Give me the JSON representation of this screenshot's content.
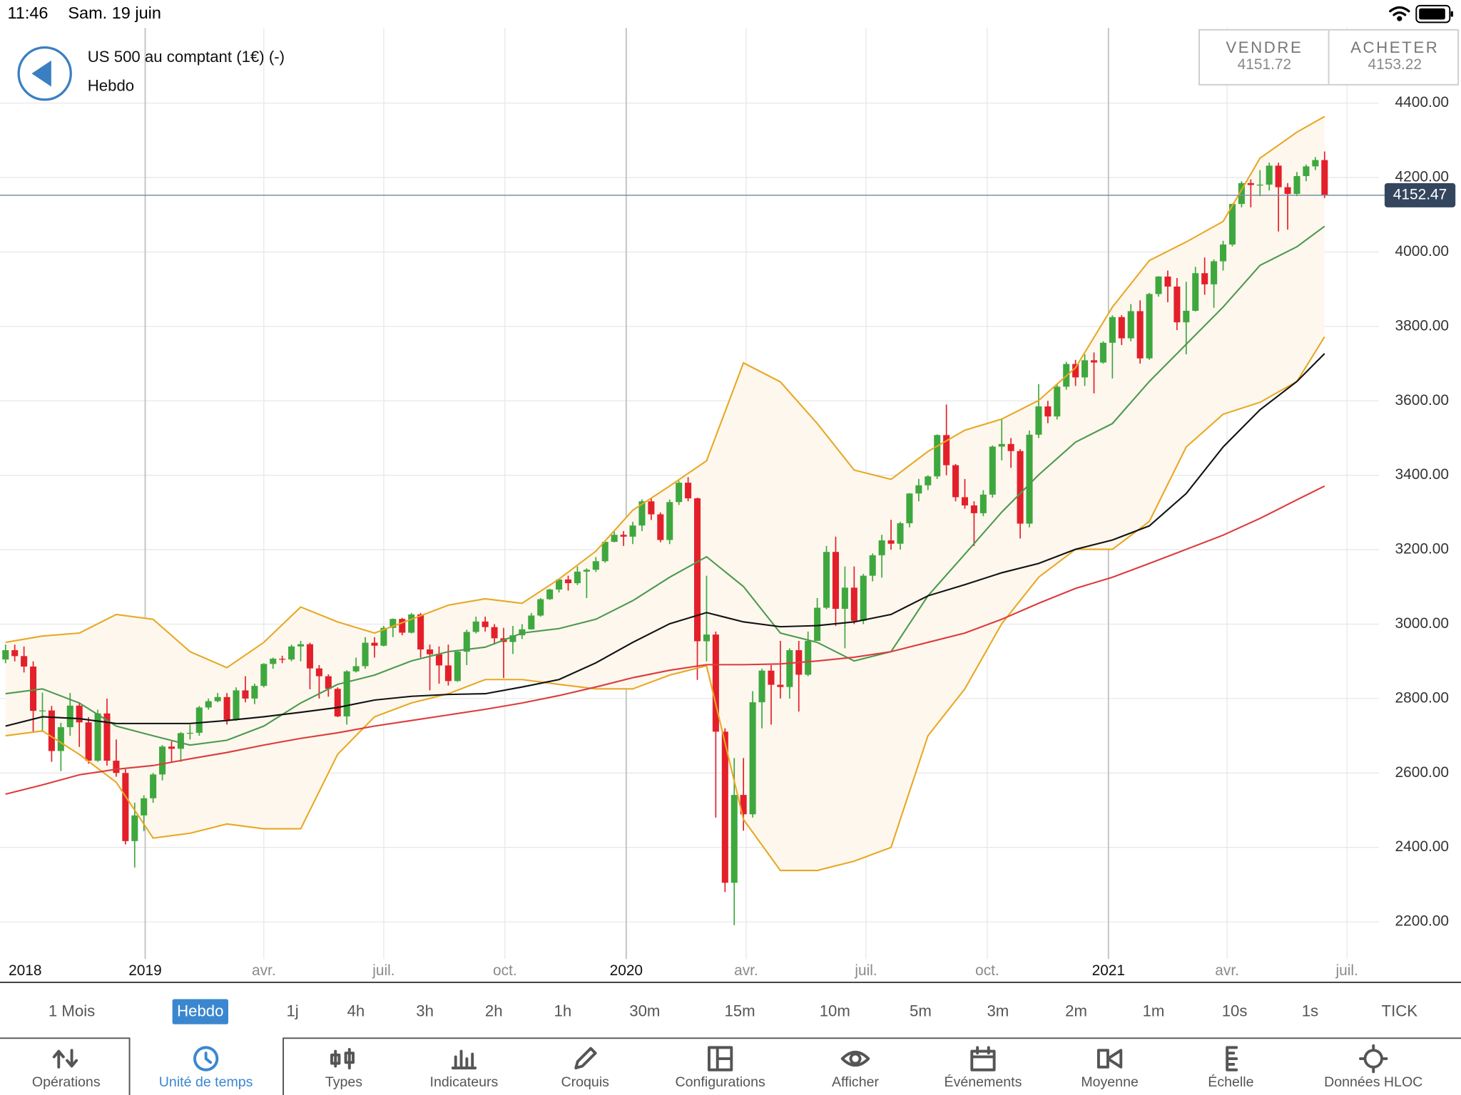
{
  "status_bar": {
    "time": "11:46",
    "date": "Sam. 19 juin"
  },
  "quote": {
    "sell_label": "VENDRE",
    "sell": 4151.72,
    "buy_label": "ACHETER",
    "buy": 4153.22
  },
  "chart_data": {
    "type": "candlestick",
    "title": "US 500 au comptant (1€) (-)",
    "subtitle": "Hebdo",
    "up_color": "#3ea83e",
    "down_color": "#e3202a",
    "open": [
      2905,
      2930,
      2914,
      2886,
      2767,
      2768,
      2659,
      2723,
      2781,
      2736,
      2633,
      2760,
      2633,
      2600,
      2417,
      2486,
      2532,
      2596,
      2671,
      2665,
      2707,
      2708,
      2776,
      2793,
      2804,
      2743,
      2822,
      2800,
      2834,
      2893,
      2907,
      2905,
      2940,
      2946,
      2881,
      2860,
      2826,
      2752,
      2873,
      2887,
      2950,
      2942,
      2990,
      3014,
      2977,
      3026,
      2932,
      2919,
      2889,
      2847,
      2926,
      2979,
      3007,
      2992,
      2962,
      2952,
      2970,
      2986,
      3023,
      3067,
      3093,
      3120,
      3110,
      3141,
      3146,
      3169,
      3221,
      3240,
      3235,
      3265,
      3330,
      3295,
      3226,
      3328,
      3380,
      3338,
      2954,
      2972,
      2711,
      2305,
      2541,
      2489,
      2790,
      2875,
      2837,
      2831,
      2930,
      2864,
      2955,
      3044,
      3194,
      3041,
      3098,
      3009,
      3130,
      3185,
      3225,
      3216,
      3271,
      3351,
      3373,
      3397,
      3508,
      3427,
      3341,
      3319,
      3298,
      3348,
      3477,
      3484,
      3465,
      3270,
      3509,
      3585,
      3558,
      3638,
      3699,
      3663,
      3709,
      3703,
      3756,
      3825,
      3768,
      3841,
      3714,
      3887,
      3934,
      3907,
      3811,
      3842,
      3943,
      3913,
      3975,
      4020,
      4129,
      4185,
      4180,
      4181,
      4232,
      4174,
      4156,
      4204,
      4230,
      4247
    ],
    "high": [
      2945,
      2945,
      2940,
      2900,
      2816,
      2780,
      2735,
      2815,
      2790,
      2750,
      2770,
      2800,
      2690,
      2610,
      2520,
      2540,
      2600,
      2675,
      2685,
      2710,
      2730,
      2780,
      2800,
      2815,
      2815,
      2830,
      2860,
      2840,
      2895,
      2910,
      2915,
      2945,
      2955,
      2950,
      2890,
      2865,
      2830,
      2876,
      2910,
      2965,
      2965,
      2995,
      3015,
      3017,
      3030,
      3030,
      2945,
      2940,
      2945,
      2930,
      2985,
      3020,
      3020,
      3000,
      2990,
      2995,
      3000,
      3030,
      3070,
      3095,
      3122,
      3130,
      3155,
      3150,
      3180,
      3225,
      3248,
      3250,
      3275,
      3335,
      3340,
      3300,
      3335,
      3385,
      3395,
      3340,
      3130,
      2980,
      2720,
      2640,
      2640,
      2820,
      2880,
      2890,
      2955,
      2935,
      2955,
      2980,
      3070,
      3210,
      3235,
      3155,
      3155,
      3135,
      3190,
      3240,
      3280,
      3275,
      3352,
      3390,
      3400,
      3510,
      3590,
      3430,
      3390,
      3330,
      3360,
      3480,
      3550,
      3500,
      3470,
      3520,
      3645,
      3600,
      3645,
      3705,
      3710,
      3725,
      3730,
      3760,
      3830,
      3830,
      3860,
      3870,
      3890,
      3935,
      3950,
      3930,
      3920,
      3960,
      3985,
      3980,
      4030,
      4130,
      4190,
      4195,
      4220,
      4240,
      4240,
      4185,
      4215,
      4235,
      4255,
      4270
    ],
    "low": [
      2895,
      2900,
      2870,
      2710,
      2710,
      2630,
      2605,
      2700,
      2670,
      2625,
      2630,
      2620,
      2590,
      2408,
      2346,
      2444,
      2520,
      2580,
      2630,
      2630,
      2690,
      2700,
      2770,
      2790,
      2730,
      2740,
      2790,
      2785,
      2830,
      2880,
      2895,
      2900,
      2900,
      2825,
      2800,
      2805,
      2750,
      2730,
      2870,
      2880,
      2910,
      2940,
      2965,
      2970,
      2975,
      2910,
      2822,
      2840,
      2835,
      2845,
      2890,
      2975,
      2980,
      2945,
      2855,
      2920,
      2960,
      2985,
      3020,
      3065,
      3085,
      3090,
      3105,
      3070,
      3140,
      3165,
      3220,
      3210,
      3215,
      3250,
      3280,
      3220,
      3215,
      3320,
      3330,
      2850,
      2900,
      2480,
      2280,
      2191,
      2445,
      2480,
      2720,
      2730,
      2800,
      2800,
      2765,
      2860,
      2960,
      3040,
      2995,
      2935,
      3000,
      3000,
      3115,
      3125,
      3200,
      3200,
      3260,
      3330,
      3360,
      3390,
      3400,
      3330,
      3310,
      3210,
      3290,
      3340,
      3440,
      3420,
      3230,
      3260,
      3500,
      3540,
      3550,
      3630,
      3640,
      3640,
      3620,
      3700,
      3660,
      3750,
      3760,
      3700,
      3710,
      3880,
      3865,
      3790,
      3725,
      3840,
      3885,
      3850,
      3950,
      4015,
      4120,
      4120,
      4150,
      4165,
      4055,
      4060,
      4150,
      4190,
      4220,
      4145
    ],
    "close": [
      2930,
      2914,
      2886,
      2767,
      2768,
      2659,
      2723,
      2781,
      2736,
      2633,
      2760,
      2633,
      2600,
      2417,
      2486,
      2532,
      2596,
      2671,
      2665,
      2707,
      2708,
      2776,
      2793,
      2804,
      2743,
      2822,
      2800,
      2834,
      2893,
      2907,
      2905,
      2940,
      2946,
      2881,
      2860,
      2826,
      2752,
      2873,
      2887,
      2950,
      2942,
      2990,
      3014,
      2977,
      3026,
      2932,
      2919,
      2889,
      2847,
      2926,
      2979,
      3007,
      2992,
      2962,
      2952,
      2970,
      2986,
      3023,
      3067,
      3093,
      3120,
      3110,
      3141,
      3146,
      3169,
      3221,
      3240,
      3235,
      3265,
      3330,
      3295,
      3226,
      3328,
      3380,
      3338,
      2954,
      2972,
      2711,
      2305,
      2541,
      2489,
      2790,
      2875,
      2837,
      2831,
      2930,
      2864,
      2955,
      3044,
      3194,
      3041,
      3098,
      3009,
      3130,
      3185,
      3225,
      3216,
      3271,
      3351,
      3373,
      3397,
      3508,
      3427,
      3341,
      3319,
      3298,
      3348,
      3477,
      3484,
      3465,
      3270,
      3509,
      3585,
      3558,
      3638,
      3699,
      3663,
      3709,
      3703,
      3756,
      3825,
      3768,
      3841,
      3714,
      3887,
      3934,
      3907,
      3811,
      3842,
      3943,
      3913,
      3975,
      4020,
      4129,
      4185,
      4180,
      4181,
      4232,
      4174,
      4156,
      4204,
      4230,
      4247,
      4152
    ],
    "line_x": [
      0,
      4,
      8,
      12,
      16,
      20,
      24,
      28,
      32,
      36,
      40,
      44,
      48,
      52,
      56,
      60,
      64,
      68,
      72,
      76,
      80,
      84,
      88,
      92,
      96,
      100,
      104,
      108,
      112,
      116,
      120,
      124,
      128,
      132,
      136,
      140,
      143
    ],
    "lines": [
      {
        "color": "#e8a823",
        "values": [
          2951,
          2968,
          2976,
          3026,
          3013,
          2926,
          2883,
          2951,
          3046,
          3006,
          2976,
          3013,
          3051,
          3068,
          3056,
          3121,
          3196,
          3306,
          3371,
          3439,
          3702,
          3651,
          3539,
          3414,
          3389,
          3464,
          3521,
          3551,
          3601,
          3689,
          3852,
          3977,
          4027,
          4082,
          4252,
          4322,
          4364
        ]
      },
      {
        "color": "#e8a823",
        "values": [
          2700,
          2713,
          2650,
          2575,
          2425,
          2438,
          2463,
          2450,
          2450,
          2650,
          2751,
          2788,
          2813,
          2851,
          2851,
          2838,
          2826,
          2826,
          2863,
          2888,
          2475,
          2338,
          2338,
          2363,
          2400,
          2700,
          2826,
          3001,
          3126,
          3201,
          3201,
          3276,
          3476,
          3564,
          3596,
          3652,
          3772
        ]
      },
      {
        "color": "#4c9a4c",
        "values": [
          2813,
          2826,
          2788,
          2726,
          2700,
          2675,
          2688,
          2726,
          2788,
          2838,
          2863,
          2901,
          2926,
          2938,
          2976,
          2988,
          3013,
          3063,
          3126,
          3181,
          3101,
          2976,
          2951,
          2901,
          2926,
          3076,
          3188,
          3301,
          3401,
          3489,
          3539,
          3652,
          3752,
          3852,
          3964,
          4014,
          4069
        ]
      },
      {
        "color": "#111111",
        "values": [
          2726,
          2751,
          2746,
          2733,
          2733,
          2733,
          2741,
          2751,
          2763,
          2776,
          2796,
          2806,
          2811,
          2813,
          2831,
          2851,
          2896,
          2951,
          3001,
          3031,
          3006,
          2993,
          2996,
          3006,
          3026,
          3076,
          3106,
          3138,
          3163,
          3201,
          3226,
          3264,
          3351,
          3476,
          3576,
          3652,
          3727
        ]
      },
      {
        "color": "#dd3b3b",
        "values": [
          2543,
          2568,
          2595,
          2610,
          2620,
          2638,
          2655,
          2675,
          2693,
          2708,
          2726,
          2741,
          2756,
          2771,
          2788,
          2808,
          2831,
          2856,
          2876,
          2891,
          2891,
          2893,
          2901,
          2911,
          2926,
          2951,
          2976,
          3013,
          3056,
          3096,
          3126,
          3163,
          3201,
          3239,
          3284,
          3334,
          3371
        ]
      }
    ],
    "band_fill": "#fdf7ee",
    "current_price": 4152.47,
    "xlim": [
      -0.6,
      148.9
    ],
    "x_period_label": "2018",
    "xticks": [
      {
        "value": 15.14,
        "label": "2019"
      },
      {
        "value": 28.0,
        "label": "avr."
      },
      {
        "value": 41.0,
        "label": "juil."
      },
      {
        "value": 54.14,
        "label": "oct."
      },
      {
        "value": 67.29,
        "label": "2020"
      },
      {
        "value": 80.29,
        "label": "avr."
      },
      {
        "value": 93.29,
        "label": "juil."
      },
      {
        "value": 106.43,
        "label": "oct."
      },
      {
        "value": 119.57,
        "label": "2021"
      },
      {
        "value": 132.43,
        "label": "avr."
      },
      {
        "value": 145.43,
        "label": "juil."
      }
    ],
    "ylim": [
      2100,
      4602
    ],
    "yticks": [
      {
        "value": 2200,
        "label": "2200.00"
      },
      {
        "value": 2400,
        "label": "2400.00"
      },
      {
        "value": 2600,
        "label": "2600.00"
      },
      {
        "value": 2800,
        "label": "2800.00"
      },
      {
        "value": 3000,
        "label": "3000.00"
      },
      {
        "value": 3200,
        "label": "3200.00"
      },
      {
        "value": 3400,
        "label": "3400.00"
      },
      {
        "value": 3600,
        "label": "3600.00"
      },
      {
        "value": 3800,
        "label": "3800.00"
      },
      {
        "value": 4000,
        "label": "4000.00"
      },
      {
        "value": 4200,
        "label": "4200.00"
      },
      {
        "value": 4400,
        "label": "4400.00"
      }
    ],
    "grid": true
  },
  "timeframes": {
    "items": [
      "1 Mois",
      "Hebdo",
      "1j",
      "4h",
      "3h",
      "2h",
      "1h",
      "30m",
      "15m",
      "10m",
      "5m",
      "3m",
      "2m",
      "1m",
      "10s",
      "1s",
      "TICK"
    ],
    "selected_index": 1
  },
  "toolbar": {
    "items": [
      "Opérations",
      "Unité de temps",
      "Types",
      "Indicateurs",
      "Croquis",
      "Configurations",
      "Afficher",
      "Événements",
      "Moyenne",
      "Échelle",
      "Données HLOC"
    ],
    "selected_index": 1
  }
}
